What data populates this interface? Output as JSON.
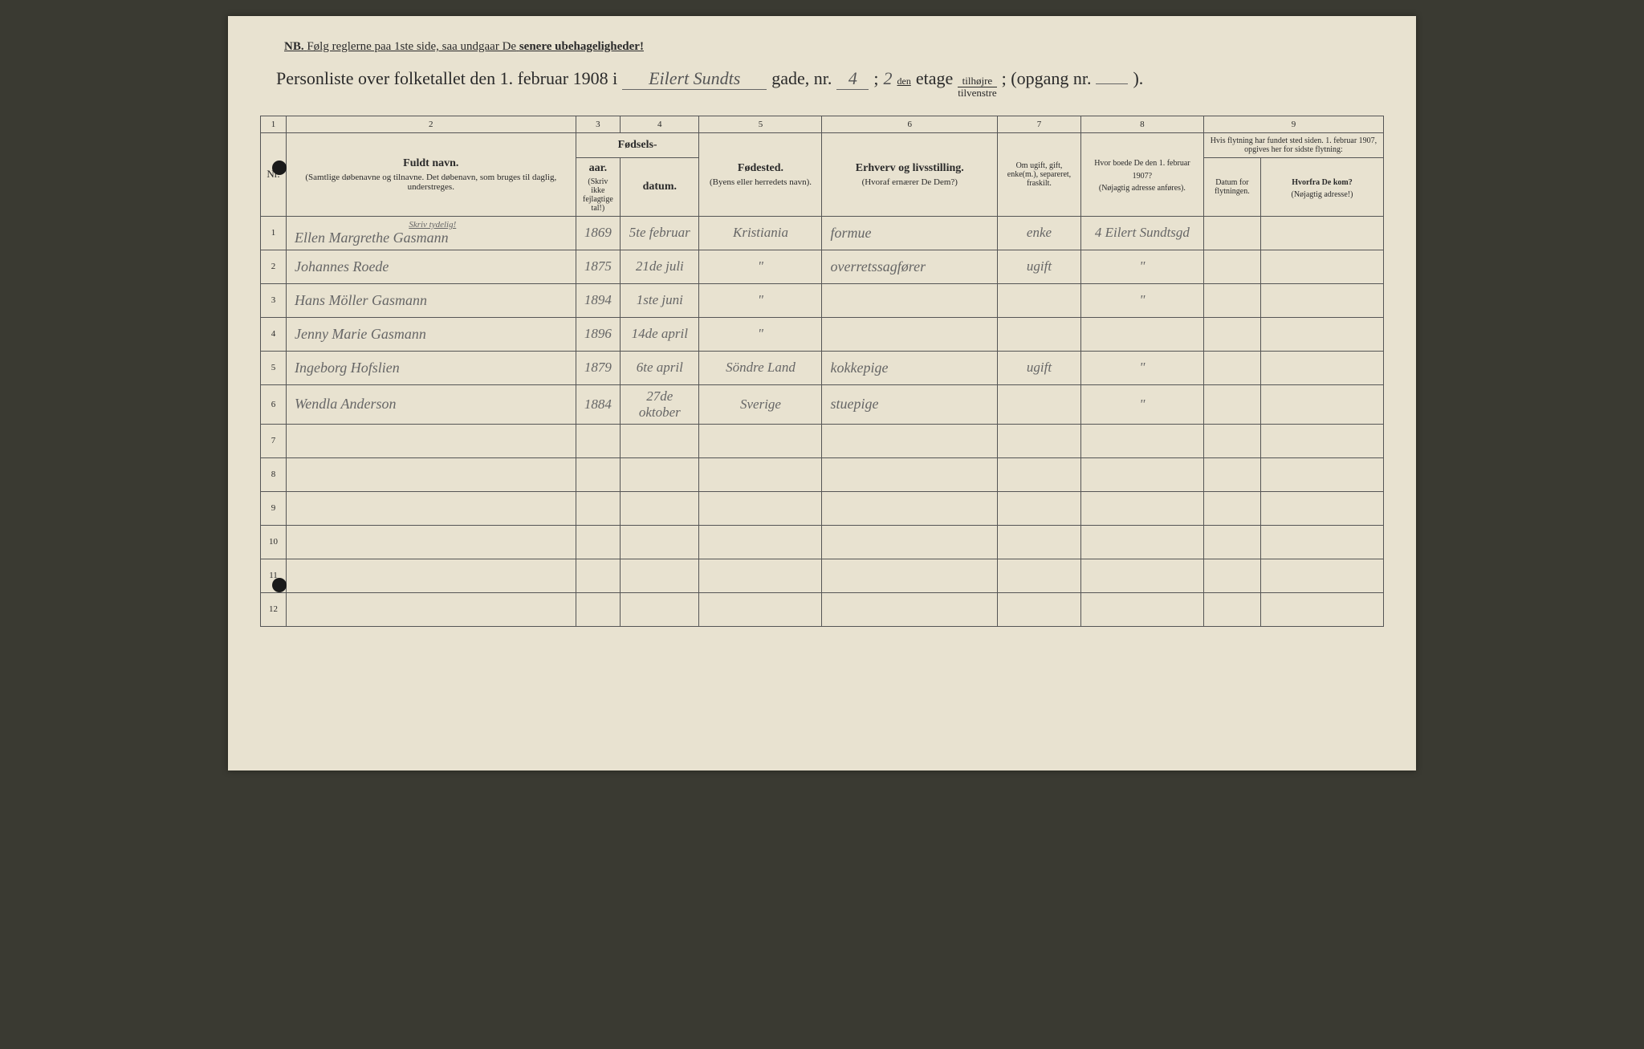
{
  "header": {
    "nb_prefix": "NB.",
    "nb_text": "Følg reglerne paa 1ste side, saa undgaar De",
    "nb_emph": "senere ubehageligheder!",
    "title_prefix": "Personliste over folketallet den 1. februar 1908 i",
    "street_hw": "Eilert Sundts",
    "gade_label": "gade, nr.",
    "gade_nr": "4",
    "semicolon": ";",
    "etage_nr": "2",
    "etage_super": "den",
    "etage_label": "etage",
    "fraction_top": "tilhøjre",
    "fraction_bottom": "tilvenstre",
    "opgang_label": "; (opgang nr.",
    "opgang_nr": "",
    "closing": ")."
  },
  "columns": {
    "c1": "1",
    "c2": "2",
    "c3": "3",
    "c4": "4",
    "c5": "5",
    "c6": "6",
    "c7": "7",
    "c8": "8",
    "c9": "9",
    "nr": "Nr.",
    "fuldt_navn": "Fuldt navn.",
    "fuldt_navn_sub": "(Samtlige døbenavne og tilnavne. Det døbenavn, som bruges til daglig, understreges.",
    "fodsels": "Fødsels-",
    "aar": "aar.",
    "datum": "datum.",
    "skriv_ikke": "(Skriv ikke fejlagtige tal!)",
    "fodested": "Fødested.",
    "fodested_sub": "(Byens eller herredets navn).",
    "erhverv": "Erhverv og livsstilling.",
    "erhverv_sub": "(Hvoraf ernærer De Dem?)",
    "ugift": "Om ugift, gift, enke(m.), separeret, fraskilt.",
    "hvor_boede": "Hvor boede De den 1. februar 1907?",
    "hvor_boede_sub": "(Nøjagtig adresse anføres).",
    "flytning": "Hvis flytning har fundet sted siden. 1. februar 1907, opgives her for sidste flytning:",
    "datum_flyt": "Datum for flytningen.",
    "hvorfra": "Hvorfra De kom?",
    "hvorfra_sub": "(Nøjagtig adresse!)",
    "skriv_tydelig": "Skriv tydelig!"
  },
  "rows": [
    {
      "nr": "1",
      "name": "Ellen Margrethe Gasmann",
      "aar": "1869",
      "datum": "5te februar",
      "fodested": "Kristiania",
      "erhverv": "formue",
      "ugift": "enke",
      "boede": "4 Eilert Sundtsgd",
      "datum2": "",
      "hvorfra": ""
    },
    {
      "nr": "2",
      "name": "Johannes Roede",
      "aar": "1875",
      "datum": "21de juli",
      "fodested": "\"",
      "erhverv": "overretssagfører",
      "ugift": "ugift",
      "boede": "\"",
      "datum2": "",
      "hvorfra": ""
    },
    {
      "nr": "3",
      "name": "Hans Möller Gasmann",
      "aar": "1894",
      "datum": "1ste juni",
      "fodested": "\"",
      "erhverv": "",
      "ugift": "",
      "boede": "\"",
      "datum2": "",
      "hvorfra": ""
    },
    {
      "nr": "4",
      "name": "Jenny Marie Gasmann",
      "aar": "1896",
      "datum": "14de april",
      "fodested": "\"",
      "erhverv": "",
      "ugift": "",
      "boede": "",
      "datum2": "",
      "hvorfra": ""
    },
    {
      "nr": "5",
      "name": "Ingeborg Hofslien",
      "aar": "1879",
      "datum": "6te april",
      "fodested": "Söndre Land",
      "erhverv": "kokkepige",
      "ugift": "ugift",
      "boede": "\"",
      "datum2": "",
      "hvorfra": ""
    },
    {
      "nr": "6",
      "name": "Wendla Anderson",
      "aar": "1884",
      "datum": "27de oktober",
      "fodested": "Sverige",
      "erhverv": "stuepige",
      "ugift": "",
      "boede": "\"",
      "datum2": "",
      "hvorfra": ""
    },
    {
      "nr": "7",
      "name": "",
      "aar": "",
      "datum": "",
      "fodested": "",
      "erhverv": "",
      "ugift": "",
      "boede": "",
      "datum2": "",
      "hvorfra": ""
    },
    {
      "nr": "8",
      "name": "",
      "aar": "",
      "datum": "",
      "fodested": "",
      "erhverv": "",
      "ugift": "",
      "boede": "",
      "datum2": "",
      "hvorfra": ""
    },
    {
      "nr": "9",
      "name": "",
      "aar": "",
      "datum": "",
      "fodested": "",
      "erhverv": "",
      "ugift": "",
      "boede": "",
      "datum2": "",
      "hvorfra": ""
    },
    {
      "nr": "10",
      "name": "",
      "aar": "",
      "datum": "",
      "fodested": "",
      "erhverv": "",
      "ugift": "",
      "boede": "",
      "datum2": "",
      "hvorfra": ""
    },
    {
      "nr": "11",
      "name": "",
      "aar": "",
      "datum": "",
      "fodested": "",
      "erhverv": "",
      "ugift": "",
      "boede": "",
      "datum2": "",
      "hvorfra": ""
    },
    {
      "nr": "12",
      "name": "",
      "aar": "",
      "datum": "",
      "fodested": "",
      "erhverv": "",
      "ugift": "",
      "boede": "",
      "datum2": "",
      "hvorfra": ""
    }
  ],
  "style": {
    "page_bg": "#e8e2d0",
    "body_bg": "#3a3a32",
    "text_color": "#2a2a2a",
    "handwriting_color": "#666",
    "border_color": "#555"
  }
}
